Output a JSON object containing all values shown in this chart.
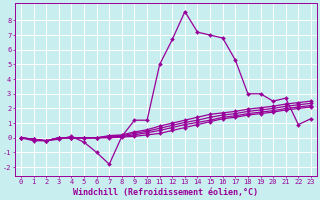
{
  "xlabel": "Windchill (Refroidissement éolien,°C)",
  "background_color": "#c8eef0",
  "line_color": "#990099",
  "grid_color": "#ffffff",
  "xlim": [
    -0.5,
    23.5
  ],
  "ylim": [
    -2.6,
    9.2
  ],
  "xticks": [
    0,
    1,
    2,
    3,
    4,
    5,
    6,
    7,
    8,
    9,
    10,
    11,
    12,
    13,
    14,
    15,
    16,
    17,
    18,
    19,
    20,
    21,
    22,
    23
  ],
  "yticks": [
    -2,
    -1,
    0,
    1,
    2,
    3,
    4,
    5,
    6,
    7,
    8
  ],
  "series": [
    [
      0.0,
      -0.2,
      -0.2,
      -0.1,
      0.1,
      -0.3,
      -1.0,
      -1.8,
      0.1,
      1.2,
      1.2,
      5.0,
      6.7,
      8.6,
      7.2,
      7.0,
      6.8,
      5.3,
      3.0,
      3.0,
      2.5,
      2.7,
      0.9,
      1.3
    ],
    [
      0.0,
      -0.1,
      -0.2,
      0.0,
      0.0,
      0.0,
      0.0,
      0.0,
      0.05,
      0.1,
      0.2,
      0.3,
      0.5,
      0.7,
      0.9,
      1.1,
      1.3,
      1.4,
      1.55,
      1.65,
      1.75,
      1.9,
      2.0,
      2.1
    ],
    [
      0.0,
      -0.1,
      -0.2,
      0.0,
      0.0,
      0.0,
      0.0,
      0.05,
      0.1,
      0.2,
      0.35,
      0.5,
      0.7,
      0.9,
      1.05,
      1.2,
      1.4,
      1.5,
      1.65,
      1.75,
      1.85,
      2.0,
      2.1,
      2.2
    ],
    [
      0.0,
      -0.1,
      -0.2,
      0.0,
      0.0,
      0.0,
      0.0,
      0.1,
      0.15,
      0.3,
      0.45,
      0.65,
      0.85,
      1.05,
      1.2,
      1.4,
      1.55,
      1.65,
      1.8,
      1.9,
      2.0,
      2.15,
      2.25,
      2.35
    ],
    [
      0.0,
      -0.1,
      -0.2,
      0.0,
      0.0,
      0.0,
      0.0,
      0.15,
      0.2,
      0.4,
      0.55,
      0.8,
      1.0,
      1.2,
      1.4,
      1.6,
      1.7,
      1.8,
      1.95,
      2.05,
      2.15,
      2.3,
      2.4,
      2.5
    ]
  ],
  "marker": "D",
  "markersize": 2.0,
  "linewidth": 0.9,
  "tick_fontsize": 5.0,
  "label_fontsize": 6.0
}
